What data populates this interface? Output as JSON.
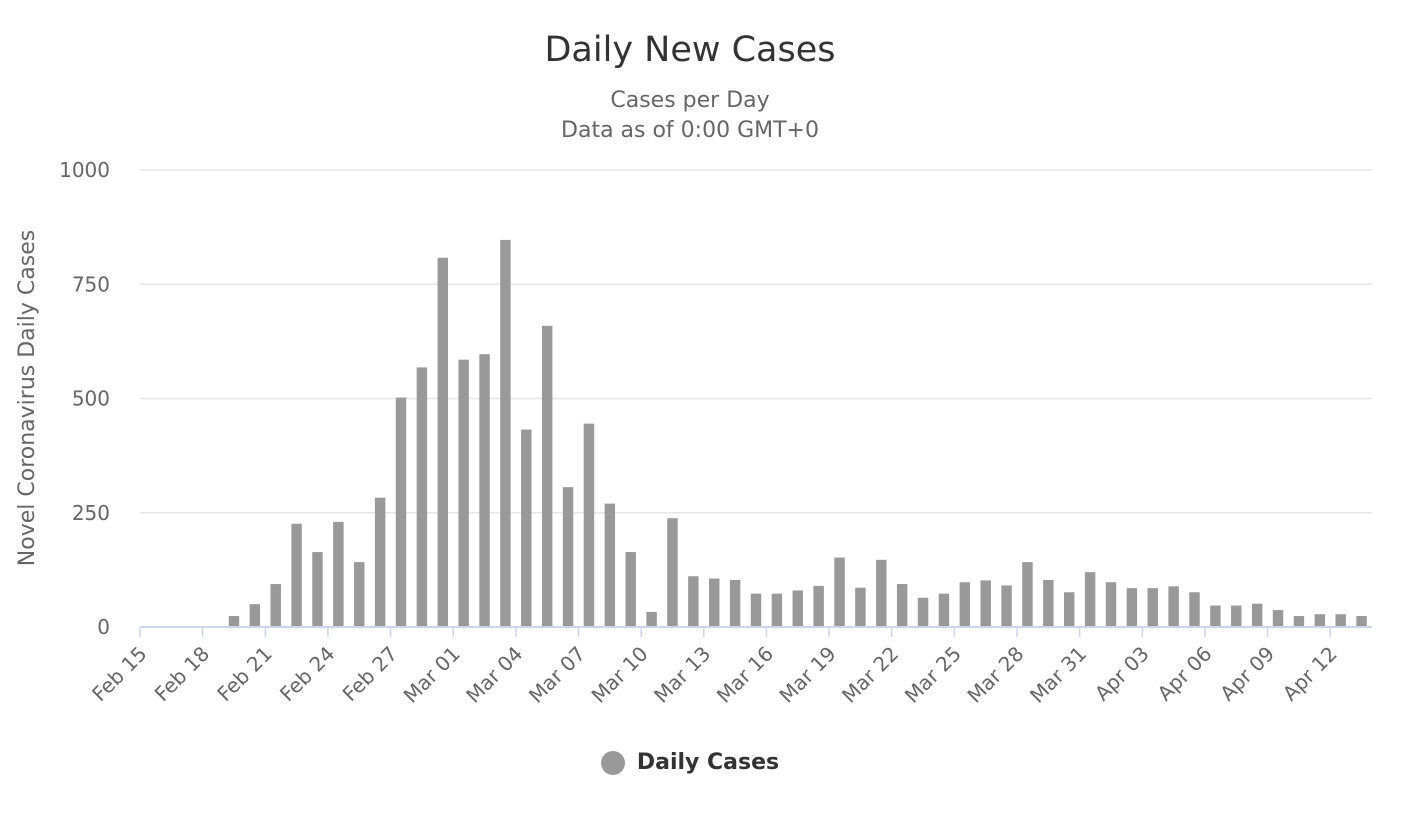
{
  "chart_data": {
    "type": "bar",
    "title": "Daily New Cases",
    "subtitle": [
      "Cases per Day",
      "Data as of 0:00 GMT+0"
    ],
    "ylabel": "Novel Coronavirus Daily Cases",
    "xlabel": "",
    "ylim": [
      0,
      1000
    ],
    "yticks": [
      "0",
      "250",
      "500",
      "750",
      "1000"
    ],
    "ytick_values": [
      0,
      250,
      500,
      750,
      1000
    ],
    "grid": true,
    "legend_position": "bottom-center",
    "bar_color": "#999999",
    "categories": [
      "Feb 15",
      "Feb 16",
      "Feb 17",
      "Feb 18",
      "Feb 19",
      "Feb 20",
      "Feb 21",
      "Feb 22",
      "Feb 23",
      "Feb 24",
      "Feb 25",
      "Feb 26",
      "Feb 27",
      "Feb 28",
      "Feb 29",
      "Mar 01",
      "Mar 02",
      "Mar 03",
      "Mar 04",
      "Mar 05",
      "Mar 06",
      "Mar 07",
      "Mar 08",
      "Mar 09",
      "Mar 10",
      "Mar 11",
      "Mar 12",
      "Mar 13",
      "Mar 14",
      "Mar 15",
      "Mar 16",
      "Mar 17",
      "Mar 18",
      "Mar 19",
      "Mar 20",
      "Mar 21",
      "Mar 22",
      "Mar 23",
      "Mar 24",
      "Mar 25",
      "Mar 26",
      "Mar 27",
      "Mar 28",
      "Mar 29",
      "Mar 30",
      "Mar 31",
      "Apr 01",
      "Apr 02",
      "Apr 03",
      "Apr 04",
      "Apr 05",
      "Apr 06",
      "Apr 07",
      "Apr 08",
      "Apr 09",
      "Apr 10",
      "Apr 11",
      "Apr 12",
      "Apr 13"
    ],
    "xtick_labels": [
      "Feb 15",
      "Feb 18",
      "Feb 21",
      "Feb 24",
      "Feb 27",
      "Mar 01",
      "Mar 04",
      "Mar 07",
      "Mar 10",
      "Mar 13",
      "Mar 16",
      "Mar 19",
      "Mar 22",
      "Mar 25",
      "Mar 28",
      "Mar 31",
      "Apr 03",
      "Apr 06",
      "Apr 09",
      "Apr 12"
    ],
    "series": [
      {
        "name": "Daily Cases",
        "values": [
          0,
          0,
          1,
          1,
          24,
          50,
          94,
          226,
          164,
          230,
          142,
          283,
          502,
          568,
          808,
          585,
          597,
          847,
          432,
          659,
          306,
          445,
          270,
          164,
          33,
          238,
          111,
          106,
          103,
          73,
          73,
          80,
          90,
          152,
          86,
          147,
          94,
          64,
          73,
          98,
          102,
          91,
          142,
          103,
          76,
          120,
          98,
          85,
          85,
          89,
          76,
          47,
          47,
          51,
          37,
          24,
          28,
          28,
          24
        ]
      }
    ]
  },
  "legend": {
    "label": "Daily Cases"
  }
}
